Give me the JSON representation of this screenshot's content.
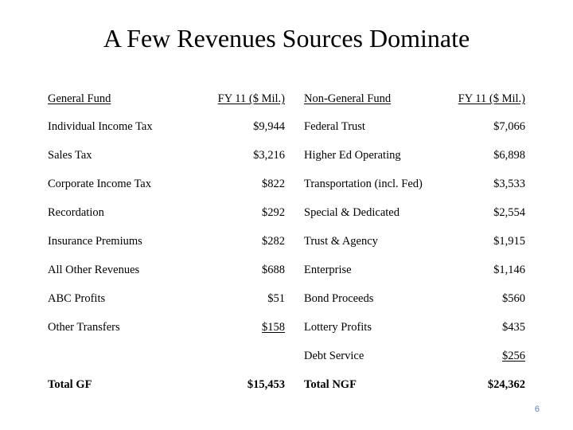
{
  "title": "A Few Revenues Sources Dominate",
  "headers": {
    "gf_label": "General Fund",
    "gf_amount": "FY 11 ($ Mil.)",
    "ngf_label": "Non-General Fund",
    "ngf_amount": "FY 11 ($ Mil.)"
  },
  "general_fund": [
    {
      "name": "Individual Income Tax",
      "amount": "$9,944"
    },
    {
      "name": "Sales Tax",
      "amount": "$3,216"
    },
    {
      "name": "Corporate Income Tax",
      "amount": "$822"
    },
    {
      "name": "Recordation",
      "amount": "$292"
    },
    {
      "name": "Insurance Premiums",
      "amount": "$282"
    },
    {
      "name": "All Other Revenues",
      "amount": "$688"
    },
    {
      "name": "ABC Profits",
      "amount": "$51"
    },
    {
      "name": "Other Transfers",
      "amount": "$158"
    }
  ],
  "non_general_fund": [
    {
      "name": "Federal Trust",
      "amount": "$7,066"
    },
    {
      "name": "Higher Ed Operating",
      "amount": "$6,898"
    },
    {
      "name": "Transportation (incl.  Fed)",
      "amount": "$3,533"
    },
    {
      "name": "Special & Dedicated",
      "amount": "$2,554"
    },
    {
      "name": "Trust & Agency",
      "amount": "$1,915"
    },
    {
      "name": "Enterprise",
      "amount": "$1,146"
    },
    {
      "name": "Bond Proceeds",
      "amount": "$560"
    },
    {
      "name": "Lottery Profits",
      "amount": "$435"
    },
    {
      "name": "Debt Service",
      "amount": "$256"
    }
  ],
  "totals": {
    "gf_label": "Total GF",
    "gf_amount": "$15,453",
    "ngf_label": "Total NGF",
    "ngf_amount": "$24,362"
  },
  "page_number": "6"
}
